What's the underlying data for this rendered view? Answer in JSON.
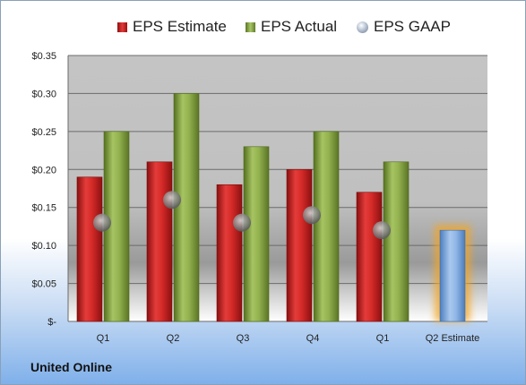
{
  "chart_data": {
    "type": "bar",
    "categories": [
      "Q1",
      "Q2",
      "Q3",
      "Q4",
      "Q1",
      "Q2 Estimate"
    ],
    "series": [
      {
        "name": "EPS Estimate",
        "color": "#c8211f",
        "values": [
          0.19,
          0.21,
          0.18,
          0.2,
          0.17,
          null
        ]
      },
      {
        "name": "EPS Actual",
        "color": "#8aab45",
        "values": [
          0.25,
          0.3,
          0.23,
          0.25,
          0.21,
          null
        ]
      },
      {
        "name": "EPS GAAP",
        "color": "#9aa6b6",
        "marker": "circle",
        "values": [
          0.13,
          0.16,
          0.13,
          0.14,
          0.12,
          null
        ]
      }
    ],
    "projection": {
      "category": "Q2 Estimate",
      "value": 0.12,
      "color": "#6f9fd8",
      "glow": "#f5a623"
    },
    "ylim": [
      0,
      0.35
    ],
    "y_ticks": [
      {
        "value": 0.35,
        "label": "$0.35"
      },
      {
        "value": 0.3,
        "label": "$0.30"
      },
      {
        "value": 0.25,
        "label": "$0.25"
      },
      {
        "value": 0.2,
        "label": "$0.20"
      },
      {
        "value": 0.15,
        "label": "$0.15"
      },
      {
        "value": 0.1,
        "label": "$0.10"
      },
      {
        "value": 0.05,
        "label": "$0.05"
      },
      {
        "value": 0.0,
        "label": "$-"
      }
    ],
    "grid": true,
    "legend_position": "top"
  },
  "legend": {
    "estimate_label": "EPS Estimate",
    "actual_label": "EPS Actual",
    "gaap_label": "EPS GAAP"
  },
  "company": "United Online"
}
